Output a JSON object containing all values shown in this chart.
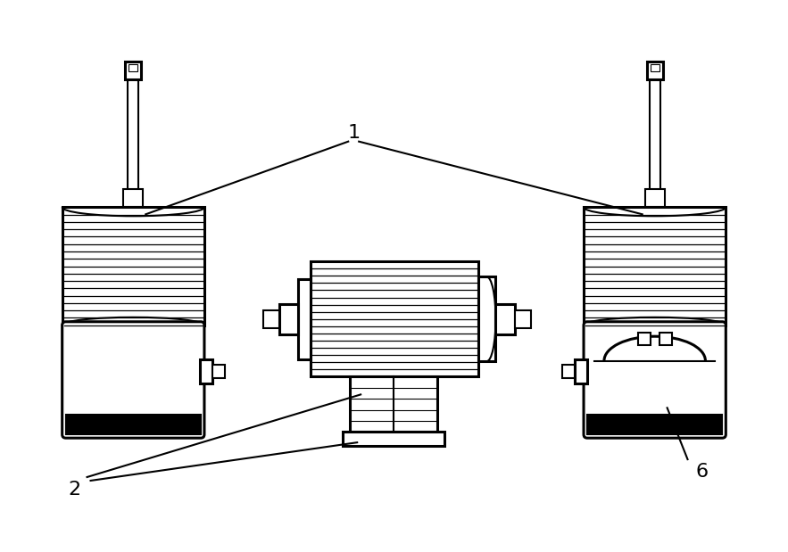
{
  "bg_color": "#ffffff",
  "line_color": "#000000",
  "lw": 1.5,
  "lw2": 2.2,
  "fig_w": 8.83,
  "fig_h": 6.19,
  "label_1": "1",
  "label_2": "2",
  "label_6": "6",
  "label_fontsize": 16
}
